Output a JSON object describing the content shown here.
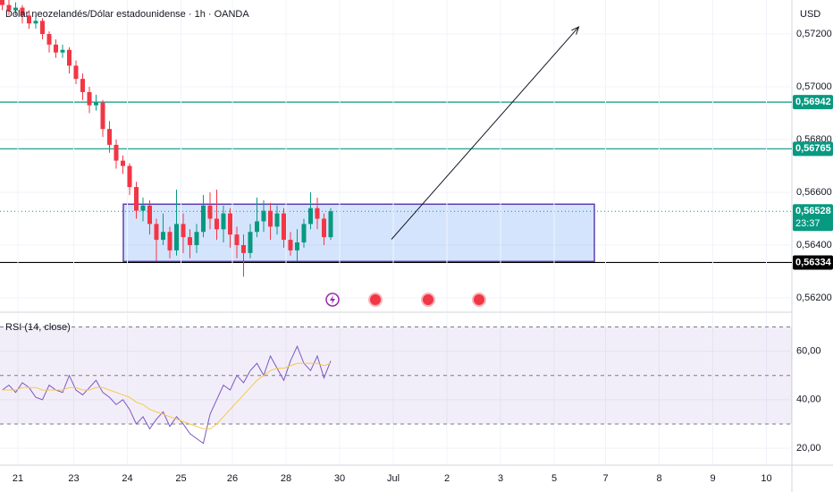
{
  "chart_data": [
    {
      "type": "candlestick",
      "title": "Dólar neozelandés/Dólar estadounidense · 1h · OANDA",
      "currency": "USD",
      "x": [
        -7,
        -4,
        -1,
        2,
        5,
        8,
        11,
        14,
        17,
        20,
        23,
        26,
        29,
        32,
        35,
        38,
        41,
        44,
        47,
        50,
        53,
        56,
        59,
        62,
        65,
        68,
        71,
        74,
        77,
        80,
        83,
        86,
        89,
        92,
        95,
        98,
        101,
        104,
        107,
        110,
        113,
        116,
        119,
        122,
        125,
        128,
        131,
        134,
        137,
        140
      ],
      "open": [
        0.5733,
        0.5731,
        0.5729,
        0.573,
        0.5727,
        0.5724,
        0.5725,
        0.572,
        0.5716,
        0.5713,
        0.5714,
        0.5708,
        0.5703,
        0.5698,
        0.5693,
        0.5694,
        0.5684,
        0.5678,
        0.5672,
        0.567,
        0.5662,
        0.5653,
        0.5655,
        0.5648,
        0.5642,
        0.5645,
        0.5638,
        0.5648,
        0.5643,
        0.564,
        0.5645,
        0.5655,
        0.565,
        0.5646,
        0.5652,
        0.5644,
        0.564,
        0.5637,
        0.5645,
        0.5649,
        0.5653,
        0.5647,
        0.5652,
        0.5642,
        0.5638,
        0.5641,
        0.5648,
        0.5654,
        0.565,
        0.5643
      ],
      "high": [
        0.5735,
        0.5734,
        0.5732,
        0.5731,
        0.5729,
        0.5727,
        0.5726,
        0.5721,
        0.5718,
        0.5716,
        0.5715,
        0.571,
        0.5705,
        0.57,
        0.5697,
        0.5695,
        0.5687,
        0.568,
        0.5674,
        0.5671,
        0.5664,
        0.5658,
        0.5657,
        0.565,
        0.5652,
        0.5647,
        0.5661,
        0.5652,
        0.5646,
        0.5648,
        0.5659,
        0.566,
        0.5661,
        0.5655,
        0.5654,
        0.5647,
        0.5644,
        0.5648,
        0.5658,
        0.5657,
        0.5656,
        0.5655,
        0.5654,
        0.5645,
        0.5646,
        0.565,
        0.566,
        0.5658,
        0.5652,
        0.5654
      ],
      "low": [
        0.5729,
        0.5727,
        0.5727,
        0.5724,
        0.5722,
        0.5722,
        0.5718,
        0.5713,
        0.5711,
        0.5711,
        0.5705,
        0.5701,
        0.5695,
        0.569,
        0.5691,
        0.5681,
        0.5675,
        0.5669,
        0.5667,
        0.5659,
        0.565,
        0.5649,
        0.5644,
        0.5634,
        0.564,
        0.5635,
        0.5636,
        0.5637,
        0.5635,
        0.5637,
        0.5643,
        0.5646,
        0.5642,
        0.5641,
        0.5639,
        0.5635,
        0.5628,
        0.5635,
        0.5643,
        0.5645,
        0.5642,
        0.5644,
        0.5639,
        0.5636,
        0.5634,
        0.5639,
        0.5646,
        0.5646,
        0.564,
        0.5642
      ],
      "close": [
        0.5731,
        0.5729,
        0.573,
        0.5727,
        0.5724,
        0.5725,
        0.572,
        0.5716,
        0.5713,
        0.5714,
        0.5708,
        0.5703,
        0.5698,
        0.5693,
        0.5694,
        0.5684,
        0.5678,
        0.5672,
        0.567,
        0.5662,
        0.5653,
        0.5655,
        0.5648,
        0.5642,
        0.5645,
        0.5638,
        0.5648,
        0.5643,
        0.564,
        0.5645,
        0.5655,
        0.565,
        0.5646,
        0.5652,
        0.5644,
        0.564,
        0.5637,
        0.5645,
        0.5649,
        0.5653,
        0.5647,
        0.5652,
        0.5642,
        0.5638,
        0.5641,
        0.5648,
        0.5654,
        0.565,
        0.5643,
        0.56528
      ],
      "up_color": "#089981",
      "down_color": "#f23645",
      "xlim": [
        -8,
        346.4
      ],
      "ylim": [
        0.56149,
        0.57329
      ],
      "yticks": [
        {
          "value": 0.572,
          "label": "0,57200"
        },
        {
          "value": 0.57,
          "label": "0,57000"
        },
        {
          "value": 0.568,
          "label": "0,56800"
        },
        {
          "value": 0.566,
          "label": "0,56600"
        },
        {
          "value": 0.564,
          "label": "0,56400"
        },
        {
          "value": 0.562,
          "label": "0,56200"
        }
      ],
      "price_lines": [
        {
          "value": 0.56942,
          "label": "0,56942",
          "color": "#089981",
          "style": "solid"
        },
        {
          "value": 0.56765,
          "label": "0,56765",
          "color": "#089981",
          "style": "solid"
        },
        {
          "value": 0.56528,
          "label": "0,56528",
          "countdown": "23:37",
          "color": "#089981",
          "style": "dotted"
        },
        {
          "value": 0.56334,
          "label": "0,56334",
          "color": "#000000",
          "style": "solid"
        }
      ],
      "box": {
        "x": [
          47.2,
          258
        ],
        "y": [
          0.56338,
          0.56555
        ],
        "color": "#5b3fb5"
      },
      "arrow": {
        "x": [
          167.2,
          251
        ],
        "y": [
          0.56422,
          0.57227
        ]
      }
    },
    {
      "type": "line",
      "label": "RSI (14, close)",
      "x": [
        -7,
        -4,
        -1,
        2,
        5,
        8,
        11,
        14,
        17,
        20,
        23,
        26,
        29,
        32,
        35,
        38,
        41,
        44,
        47,
        50,
        53,
        56,
        59,
        62,
        65,
        68,
        71,
        74,
        77,
        80,
        83,
        86,
        89,
        92,
        95,
        98,
        101,
        104,
        107,
        110,
        113,
        116,
        119,
        122,
        125,
        128,
        131,
        134,
        137,
        140
      ],
      "series": [
        {
          "color": "#7e57c2",
          "values": [
            44,
            46,
            43,
            47,
            45,
            41,
            40,
            46,
            44,
            43,
            50,
            44,
            42,
            45,
            48,
            43,
            41,
            38,
            40,
            36,
            30,
            33,
            28,
            32,
            35,
            29,
            33,
            30,
            26,
            24,
            22,
            34,
            40,
            46,
            44,
            50,
            47,
            52,
            55,
            50,
            58,
            53,
            48,
            56,
            62,
            55,
            52,
            58,
            49,
            56
          ]
        },
        {
          "color": "#f7c948",
          "values": [
            44,
            44,
            44,
            45,
            45,
            45,
            44,
            44,
            44,
            44,
            45,
            45,
            44,
            44,
            45,
            45,
            44,
            43,
            42,
            41,
            39,
            38,
            36,
            35,
            34,
            33,
            32,
            31,
            30,
            29,
            28,
            28,
            30,
            33,
            36,
            39,
            42,
            45,
            48,
            50,
            52,
            53,
            53,
            54,
            55,
            55,
            55,
            55,
            54,
            55
          ]
        }
      ],
      "bands": [
        70,
        50,
        30
      ],
      "xlim": [
        -8,
        346.4
      ],
      "ylim": [
        13.4,
        75.7
      ],
      "yticks": [
        {
          "value": 60,
          "label": "60,00"
        },
        {
          "value": 40,
          "label": "40,00"
        },
        {
          "value": 20,
          "label": "20,00"
        }
      ],
      "xticks": [
        {
          "value": 0,
          "label": "21"
        },
        {
          "value": 25,
          "label": "23"
        },
        {
          "value": 49,
          "label": "24"
        },
        {
          "value": 73,
          "label": "25"
        },
        {
          "value": 96,
          "label": "26"
        },
        {
          "value": 120,
          "label": "28"
        },
        {
          "value": 144,
          "label": "30"
        },
        {
          "value": 168,
          "label": "Jul"
        },
        {
          "value": 192,
          "label": "2"
        },
        {
          "value": 216,
          "label": "3"
        },
        {
          "value": 240,
          "label": "5"
        },
        {
          "value": 263,
          "label": "7"
        },
        {
          "value": 287,
          "label": "8"
        },
        {
          "value": 311,
          "label": "9"
        },
        {
          "value": 335,
          "label": "10"
        }
      ]
    }
  ]
}
